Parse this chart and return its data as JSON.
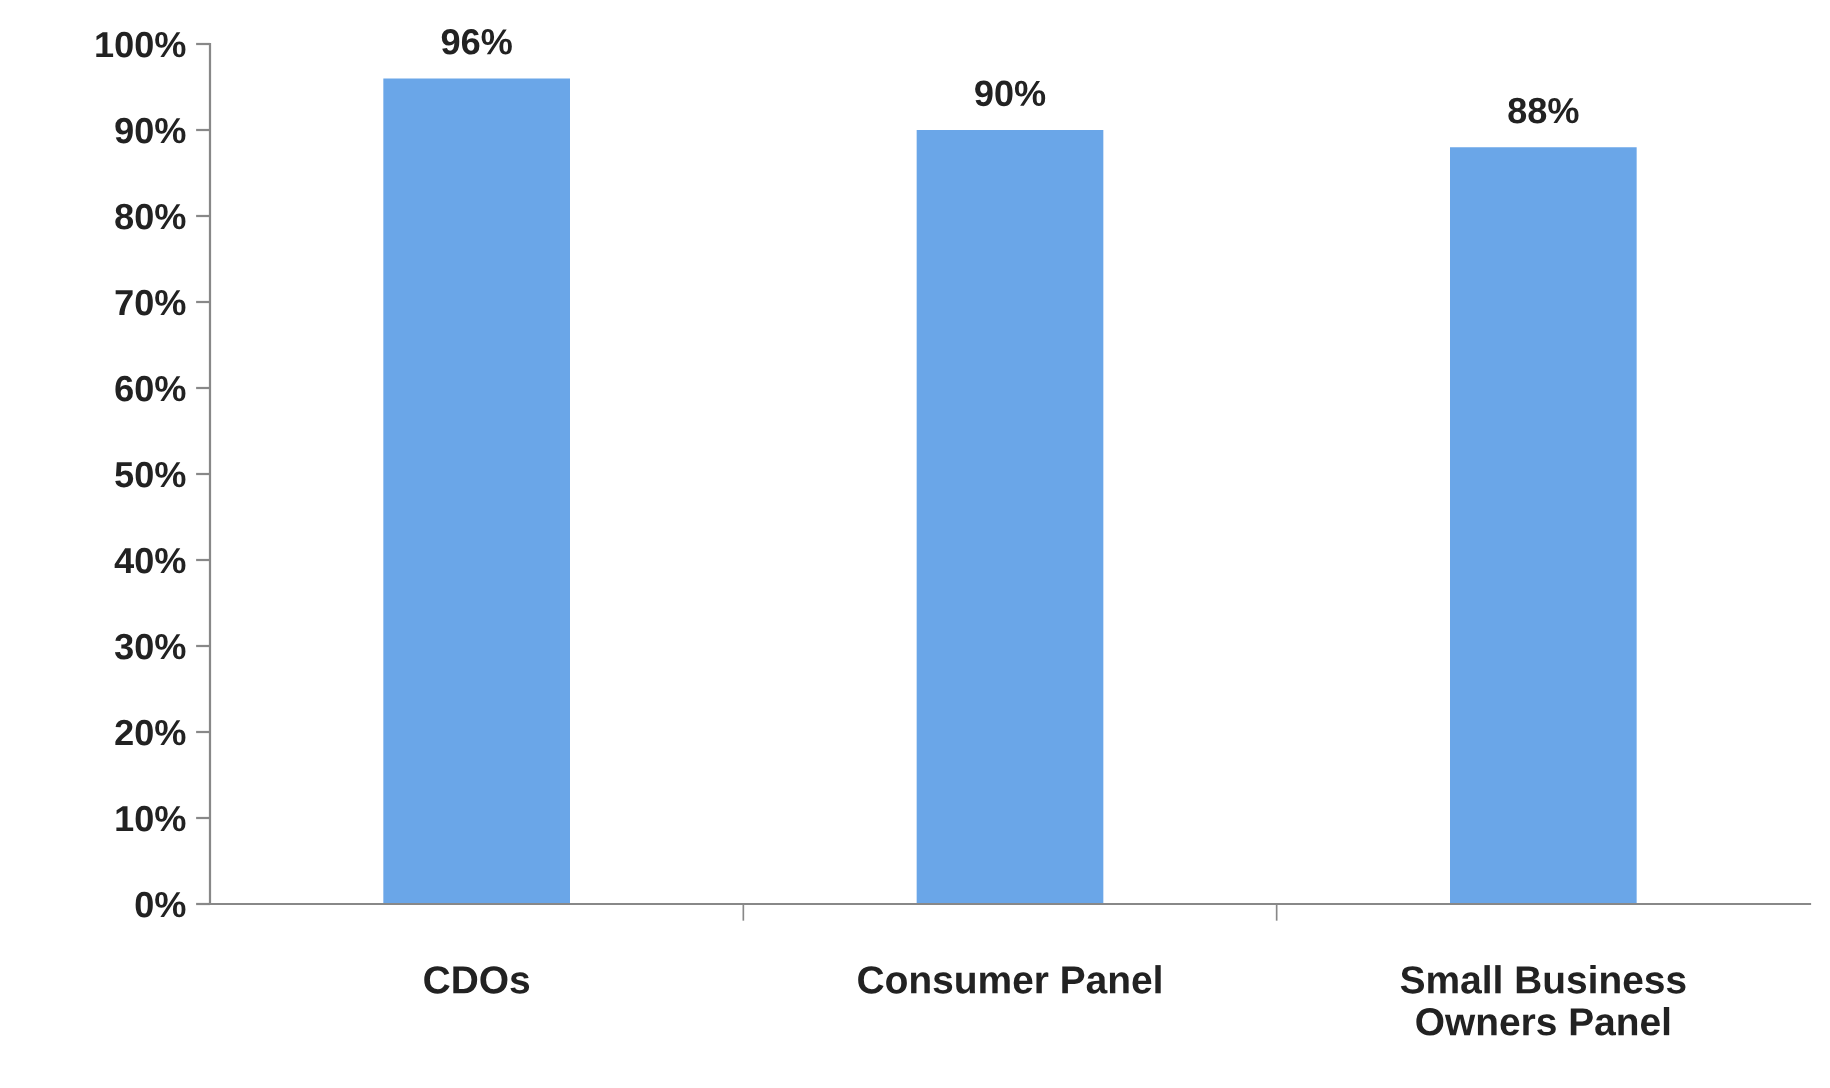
{
  "chart_data": {
    "type": "bar",
    "categories": [
      "CDOs",
      "Consumer Panel",
      "Small Business\nOwners Panel"
    ],
    "values": [
      96,
      90,
      88
    ],
    "color": "#6aa6e8",
    "value_labels": [
      "96%",
      "90%",
      "88%"
    ],
    "ylim": [
      0,
      100
    ],
    "yticks": [
      {
        "value": 0,
        "label": "0%"
      },
      {
        "value": 10,
        "label": "10%"
      },
      {
        "value": 20,
        "label": "20%"
      },
      {
        "value": 30,
        "label": "30%"
      },
      {
        "value": 40,
        "label": "40%"
      },
      {
        "value": 50,
        "label": "50%"
      },
      {
        "value": 60,
        "label": "60%"
      },
      {
        "value": 70,
        "label": "70%"
      },
      {
        "value": 80,
        "label": "80%"
      },
      {
        "value": 90,
        "label": "90%"
      },
      {
        "value": 100,
        "label": "100%"
      }
    ],
    "grid": false,
    "legend": false
  }
}
